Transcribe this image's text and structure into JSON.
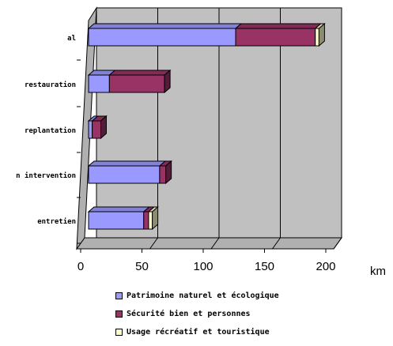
{
  "chart_data": {
    "type": "bar",
    "orientation": "horizontal",
    "stacked": true,
    "three_d": true,
    "categories": [
      "al",
      "restauration",
      "replantation",
      "n intervention",
      "entretien"
    ],
    "series": [
      {
        "name": "Patrimoine naturel et écologique",
        "color": "#9999ff",
        "values": [
          120,
          17,
          3,
          58,
          45
        ]
      },
      {
        "name": "Sécurité bien et personnes",
        "color": "#993366",
        "values": [
          65,
          45,
          7,
          5,
          4
        ]
      },
      {
        "name": "Usage récréatif et touristique",
        "color": "#ffffcc",
        "values": [
          3,
          0,
          0,
          0,
          3
        ]
      }
    ],
    "xlim": [
      0,
      200
    ],
    "x_ticks": [
      "0",
      "50",
      "100",
      "150",
      "200"
    ],
    "xunit": "km",
    "grid": "vertical",
    "legend_position": "bottom"
  }
}
